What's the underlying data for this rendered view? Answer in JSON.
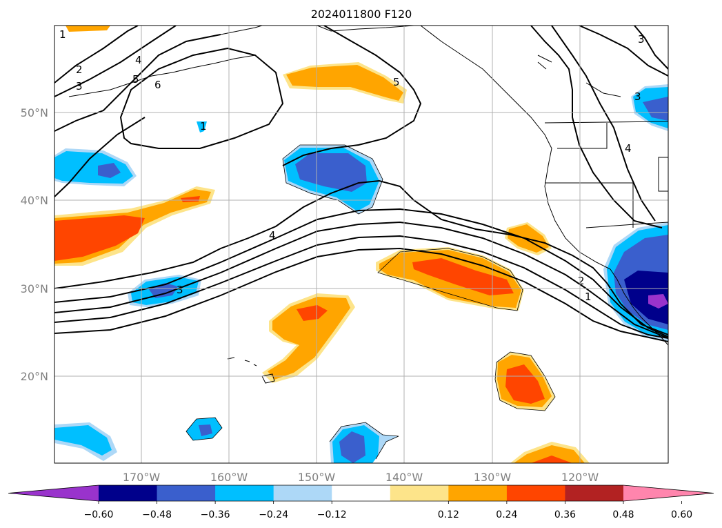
{
  "title": "2024011800 F120",
  "lat_ticks": [
    "50°N",
    "40°N",
    "30°N",
    "20°N"
  ],
  "lon_ticks": [
    "170°W",
    "160°W",
    "150°W",
    "140°W",
    "130°W",
    "120°W"
  ],
  "colorbar": {
    "colors": [
      "#9933cc",
      "#00008b",
      "#3a5fcd",
      "#00bfff",
      "#add8f7",
      "#ffffff",
      "#fde48a",
      "#ffa500",
      "#ff4500",
      "#b22222",
      "#ff85ad"
    ],
    "labels": [
      "−0.60",
      "−0.48",
      "−0.36",
      "−0.24",
      "−0.12",
      "0.12",
      "0.24",
      "0.36",
      "0.48",
      "0.60"
    ]
  },
  "contour_labels": [
    "1",
    "2",
    "3",
    "4",
    "5",
    "6",
    "1",
    "5",
    "3",
    "4",
    "3",
    "2",
    "1",
    "4",
    "3"
  ],
  "colors": {
    "grid": "#b0b0b0",
    "contour": "#000000",
    "coast": "#000000"
  }
}
